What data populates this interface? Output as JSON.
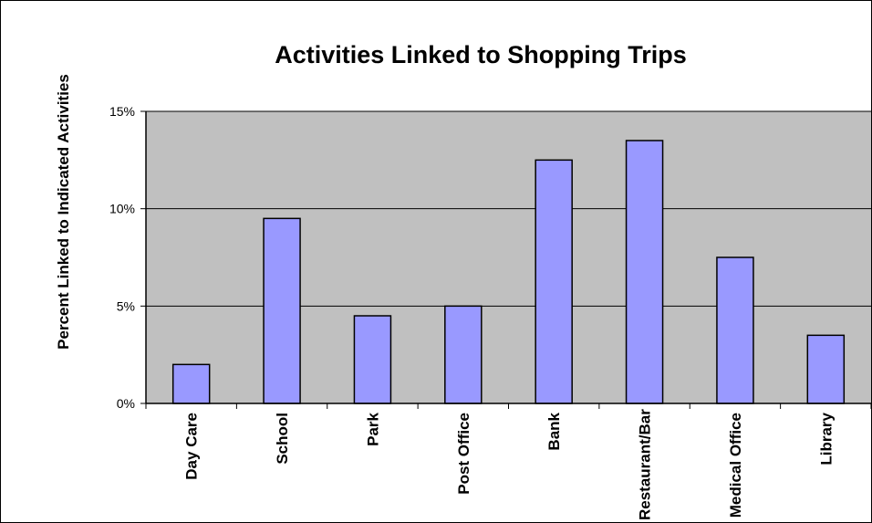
{
  "chart_data": {
    "type": "bar",
    "title": "Activities Linked to Shopping Trips",
    "xlabel": "",
    "ylabel": "Percent Linked to Indicated Activities",
    "categories": [
      "Day Care",
      "School",
      "Park",
      "Post Office",
      "Bank",
      "Restaurant/Bar",
      "Medical Office",
      "Library"
    ],
    "values": [
      2,
      9.5,
      4.5,
      5,
      12.5,
      13.5,
      7.5,
      3.5
    ],
    "ylim": [
      0,
      15
    ],
    "yticks": [
      0,
      5,
      10,
      15
    ],
    "ytick_labels": [
      "0%",
      "5%",
      "10%",
      "15%"
    ],
    "grid": true,
    "plot_background": "#c0c0c0",
    "bar_color": "#9999ff",
    "legend": "none"
  }
}
